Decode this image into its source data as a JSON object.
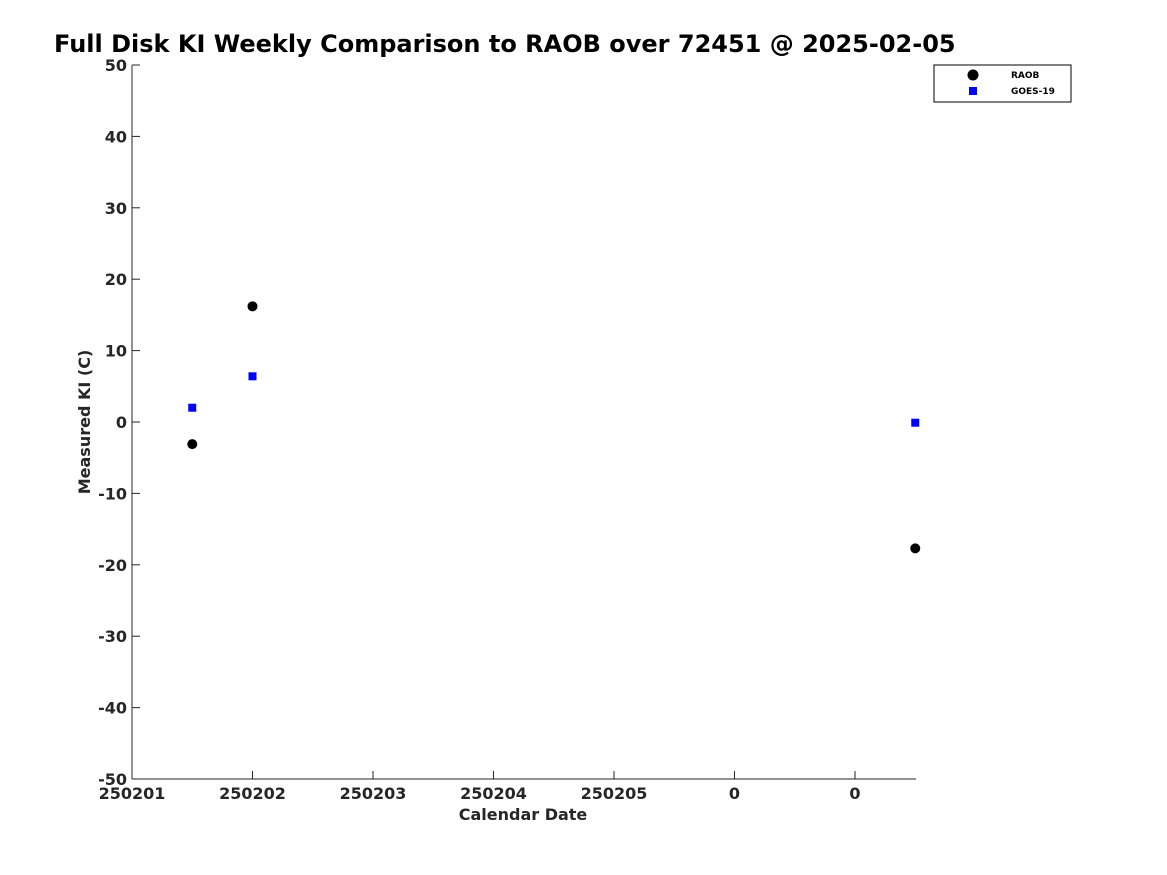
{
  "chart_data": {
    "type": "scatter",
    "title": "Full Disk KI Weekly Comparison to RAOB over 72451 @ 2025-02-05",
    "xlabel": "Calendar Date",
    "ylabel": "Measured KI (C)",
    "ylim": [
      -50,
      50
    ],
    "yticks": [
      50,
      40,
      30,
      20,
      10,
      0,
      -10,
      -20,
      -30,
      -40,
      -50
    ],
    "xlim": [
      0,
      6.5
    ],
    "xticks": [
      {
        "pos": 0,
        "label": "250201"
      },
      {
        "pos": 1,
        "label": "250202"
      },
      {
        "pos": 2,
        "label": "250203"
      },
      {
        "pos": 3,
        "label": "250204"
      },
      {
        "pos": 4,
        "label": "250205"
      },
      {
        "pos": 5,
        "label": "0"
      },
      {
        "pos": 6,
        "label": "0"
      }
    ],
    "legend_position": "top-right",
    "series": [
      {
        "name": "RAOB",
        "marker": "circle",
        "color": "#000000",
        "points": [
          {
            "x": 0.5,
            "y": -3.1
          },
          {
            "x": 1.0,
            "y": 16.2
          },
          {
            "x": 6.5,
            "y": -17.7
          }
        ]
      },
      {
        "name": "GOES-19",
        "marker": "square",
        "color": "#0000ff",
        "points": [
          {
            "x": 0.5,
            "y": 2.0
          },
          {
            "x": 1.0,
            "y": 6.4
          },
          {
            "x": 6.5,
            "y": -0.1
          }
        ]
      }
    ]
  }
}
